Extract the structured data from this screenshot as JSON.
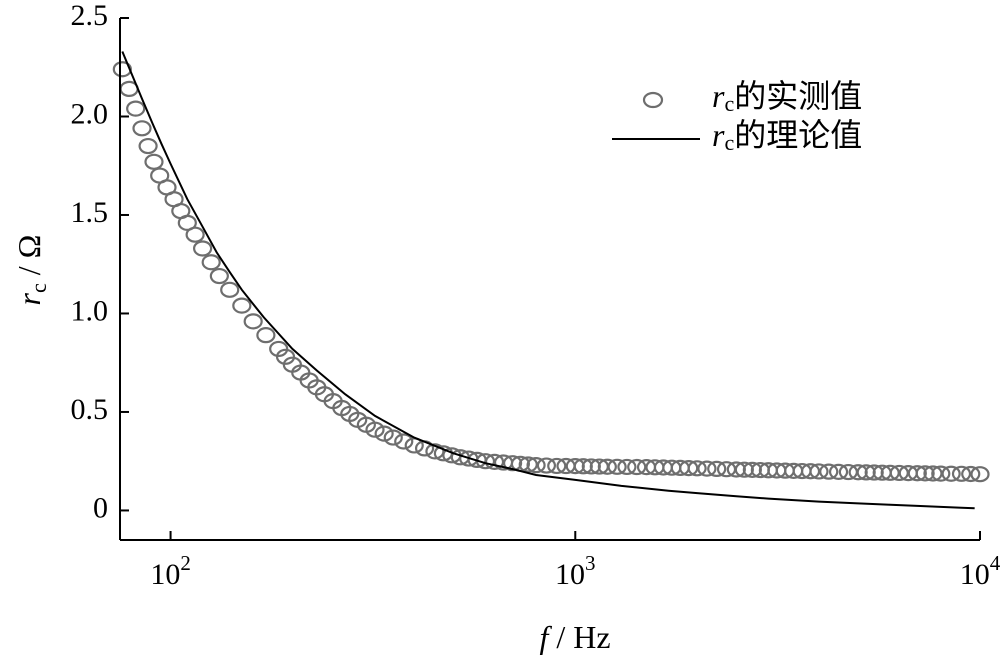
{
  "chart_data": {
    "type": "scatter",
    "title": "",
    "xscale": "log",
    "xlim": [
      75,
      10000
    ],
    "ylim": [
      -0.15,
      2.5
    ],
    "x_ticks": [
      {
        "value": 100,
        "base": "10",
        "exp": "2"
      },
      {
        "value": 1000,
        "base": "10",
        "exp": "3"
      },
      {
        "value": 10000,
        "base": "10",
        "exp": "4"
      }
    ],
    "y_ticks": [
      {
        "value": 0,
        "label": "0"
      },
      {
        "value": 0.5,
        "label": "0.5"
      },
      {
        "value": 1.0,
        "label": "1.0"
      },
      {
        "value": 1.5,
        "label": "1.5"
      },
      {
        "value": 2.0,
        "label": "2.0"
      },
      {
        "value": 2.5,
        "label": "2.5"
      }
    ],
    "xlabel": {
      "var": "f",
      "unit": " / Hz"
    },
    "ylabel": {
      "var": "r",
      "sub": "c",
      "unit": " / Ω"
    },
    "legend_position": "top-right",
    "series": [
      {
        "name": {
          "var": "r",
          "sub": "c",
          "text": "的实测值"
        },
        "kind": "markers",
        "color": "#6e6e6e",
        "x": [
          76,
          79,
          82,
          85,
          88,
          91,
          94,
          98,
          102,
          106,
          110,
          115,
          120,
          126,
          132,
          140,
          150,
          160,
          172,
          185,
          200,
          220,
          240,
          265,
          290,
          320,
          355,
          400,
          450,
          520,
          600,
          700,
          800,
          900,
          1000,
          1200,
          1500,
          2000,
          2500,
          3000,
          4000,
          5000,
          6000,
          7000,
          8000,
          9000,
          10000
        ],
        "y": [
          2.24,
          2.14,
          2.04,
          1.94,
          1.85,
          1.77,
          1.7,
          1.64,
          1.58,
          1.52,
          1.46,
          1.4,
          1.33,
          1.26,
          1.19,
          1.12,
          1.04,
          0.96,
          0.89,
          0.82,
          0.74,
          0.66,
          0.59,
          0.52,
          0.46,
          0.41,
          0.37,
          0.33,
          0.3,
          0.27,
          0.25,
          0.24,
          0.23,
          0.226,
          0.225,
          0.222,
          0.22,
          0.214,
          0.208,
          0.204,
          0.198,
          0.194,
          0.191,
          0.189,
          0.187,
          0.186,
          0.184
        ]
      },
      {
        "name": {
          "var": "r",
          "sub": "c",
          "text": "的理论值"
        },
        "kind": "line",
        "color": "#000000",
        "x": [
          76,
          80,
          85,
          90,
          95,
          100,
          110,
          120,
          130,
          140,
          150,
          170,
          200,
          230,
          270,
          320,
          400,
          500,
          600,
          700,
          800,
          1000,
          1300,
          1700,
          2000,
          2500,
          3000,
          4000,
          5000,
          6000,
          7000,
          8000,
          9000,
          9700
        ],
        "y": [
          2.33,
          2.22,
          2.09,
          1.97,
          1.86,
          1.76,
          1.58,
          1.44,
          1.31,
          1.21,
          1.12,
          0.98,
          0.82,
          0.71,
          0.59,
          0.48,
          0.37,
          0.29,
          0.24,
          0.21,
          0.18,
          0.155,
          0.125,
          0.1,
          0.088,
          0.072,
          0.06,
          0.045,
          0.036,
          0.029,
          0.023,
          0.018,
          0.014,
          0.011
        ]
      }
    ]
  }
}
